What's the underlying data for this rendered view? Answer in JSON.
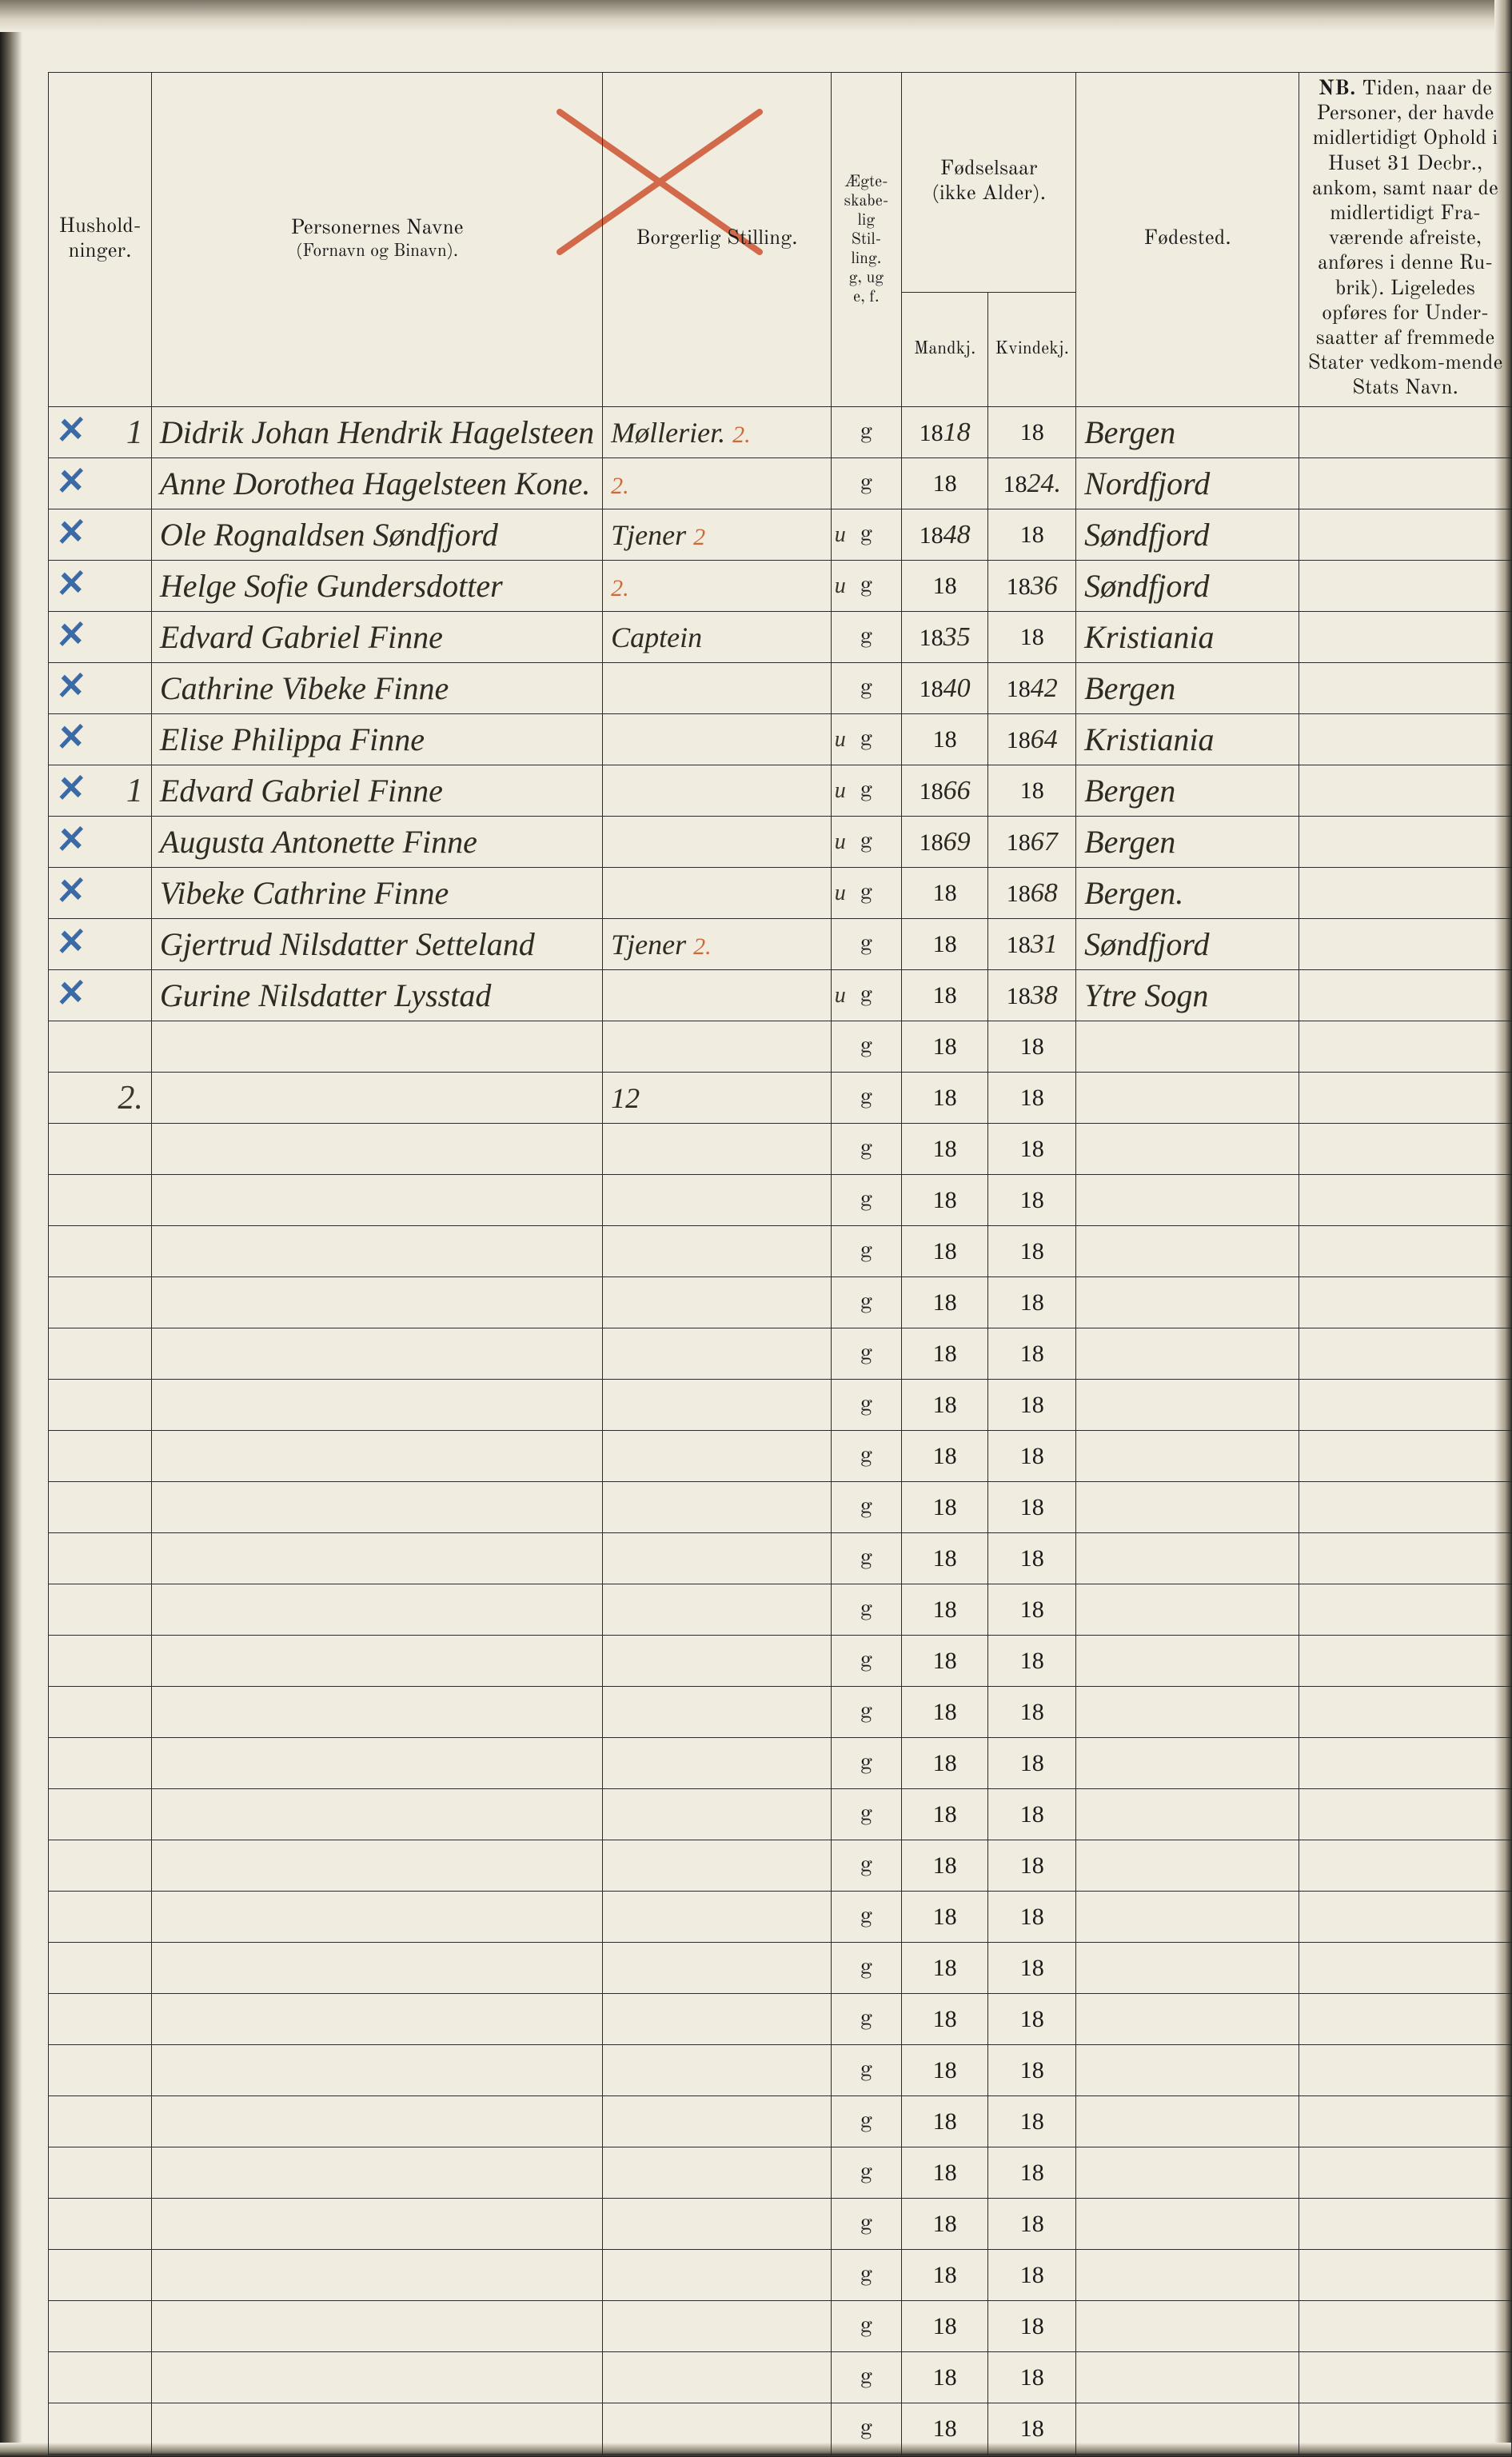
{
  "headers": {
    "husholdninger": "Hushold-\nninger.",
    "personernes_navne": "Personernes Navne",
    "fornavn_binavn": "(Fornavn og Binavn).",
    "borgerlig_stilling": "Borgerlig Stilling.",
    "aegteskabelig": "Ægte-\nskabe-\nlig\nStil-\nling.\ng, ug\ne, f.",
    "fodselsaar": "Fødselsaar\n(ikke Alder).",
    "mandkj": "Mandkj.",
    "kvindekj": "Kvindekj.",
    "fodested": "Fødested.",
    "nb_label": "NB.",
    "nb_text": "Tiden, naar de Personer, der havde midlertidigt Ophold i Huset 31 Decbr., ankom, samt naar de midlertidigt Fra-værende afreiste, anføres i denne Ru-brik). Ligeledes opføres for Under-saatter af fremmede Stater vedkom-mende Stats Navn."
  },
  "colors": {
    "paper": "#f0ece0",
    "ink": "#1a1a1a",
    "hand_ink": "#2e2a24",
    "red_cross": "#d2694a",
    "blue_mark": "#3a6aa8",
    "orange": "#cc6a3a",
    "rule": "#2b2b2b"
  },
  "year_prefix": "18",
  "total_body_rows": 42,
  "rows": [
    {
      "mark": "✕",
      "hus": "1",
      "navn": "Didrik Johan Hendrik Hagelsteen",
      "stilling": "Møllerier.",
      "stilling_annot": "2.",
      "aegt_hand": "",
      "aegt": "g",
      "mand": "18",
      "kvin": "",
      "fode": "Bergen"
    },
    {
      "mark": "✕",
      "hus": "",
      "navn": "Anne Dorothea Hagelsteen Kone.",
      "stilling": "",
      "stilling_annot": "2.",
      "aegt_hand": "",
      "aegt": "g",
      "mand": "",
      "kvin": "24.",
      "fode": "Nordfjord"
    },
    {
      "mark": "✕",
      "hus": "",
      "navn": "Ole Rognaldsen Søndfjord",
      "stilling": "Tjener",
      "stilling_annot": "2",
      "aegt_hand": "u",
      "aegt": "g",
      "mand": "48",
      "kvin": "",
      "fode": "Søndfjord"
    },
    {
      "mark": "✕",
      "hus": "",
      "navn": "Helge Sofie Gundersdotter",
      "stilling": "",
      "stilling_annot": "2.",
      "aegt_hand": "u",
      "aegt": "g",
      "mand": "",
      "kvin": "36",
      "fode": "Søndfjord"
    },
    {
      "mark": "✕",
      "hus": "",
      "navn": "Edvard Gabriel Finne",
      "stilling": "Captein",
      "stilling_annot": "",
      "aegt_hand": "",
      "aegt": "g",
      "mand": "35",
      "kvin": "",
      "fode": "Kristiania"
    },
    {
      "mark": "✕",
      "hus": "",
      "navn": "Cathrine Vibeke Finne",
      "stilling": "",
      "stilling_annot": "",
      "aegt_hand": "",
      "aegt": "g",
      "mand": "40",
      "kvin": "42",
      "fode": "Bergen"
    },
    {
      "mark": "✕",
      "hus": "",
      "navn": "Elise Philippa Finne",
      "stilling": "",
      "stilling_annot": "",
      "aegt_hand": "u",
      "aegt": "g",
      "mand": "",
      "kvin": "64",
      "fode": "Kristiania"
    },
    {
      "mark": "✕",
      "hus": "1",
      "navn": "Edvard Gabriel Finne",
      "stilling": "",
      "stilling_annot": "",
      "aegt_hand": "u",
      "aegt": "g",
      "mand": "66",
      "kvin": "",
      "fode": "Bergen"
    },
    {
      "mark": "✕",
      "hus": "",
      "navn": "Augusta Antonette Finne",
      "stilling": "",
      "stilling_annot": "",
      "aegt_hand": "u",
      "aegt": "g",
      "mand": "69",
      "kvin": "67",
      "fode": "Bergen"
    },
    {
      "mark": "✕",
      "hus": "",
      "navn": "Vibeke Cathrine Finne",
      "stilling": "",
      "stilling_annot": "",
      "aegt_hand": "u",
      "aegt": "g",
      "mand": "",
      "kvin": "68",
      "fode": "Bergen."
    },
    {
      "mark": "✕",
      "hus": "",
      "navn": "Gjertrud Nilsdatter Setteland",
      "stilling": "Tjener",
      "stilling_annot": "2.",
      "aegt_hand": "",
      "aegt": "g",
      "mand": "",
      "kvin": "31",
      "fode": "Søndfjord"
    },
    {
      "mark": "✕",
      "hus": "",
      "navn": "Gurine Nilsdatter Lysstad",
      "stilling": "",
      "stilling_annot": "",
      "aegt_hand": "u",
      "aegt": "g",
      "mand": "",
      "kvin": "38",
      "fode": "Ytre Sogn"
    },
    {
      "mark": "",
      "hus": "",
      "navn": "",
      "stilling": "",
      "stilling_annot": "",
      "aegt_hand": "",
      "aegt": "g",
      "mand": "",
      "kvin": "",
      "fode": ""
    },
    {
      "mark": "",
      "hus": "2.",
      "navn": "",
      "stilling": "12",
      "stilling_annot": "",
      "aegt_hand": "",
      "aegt": "g",
      "mand": "",
      "kvin": "",
      "fode": ""
    }
  ]
}
